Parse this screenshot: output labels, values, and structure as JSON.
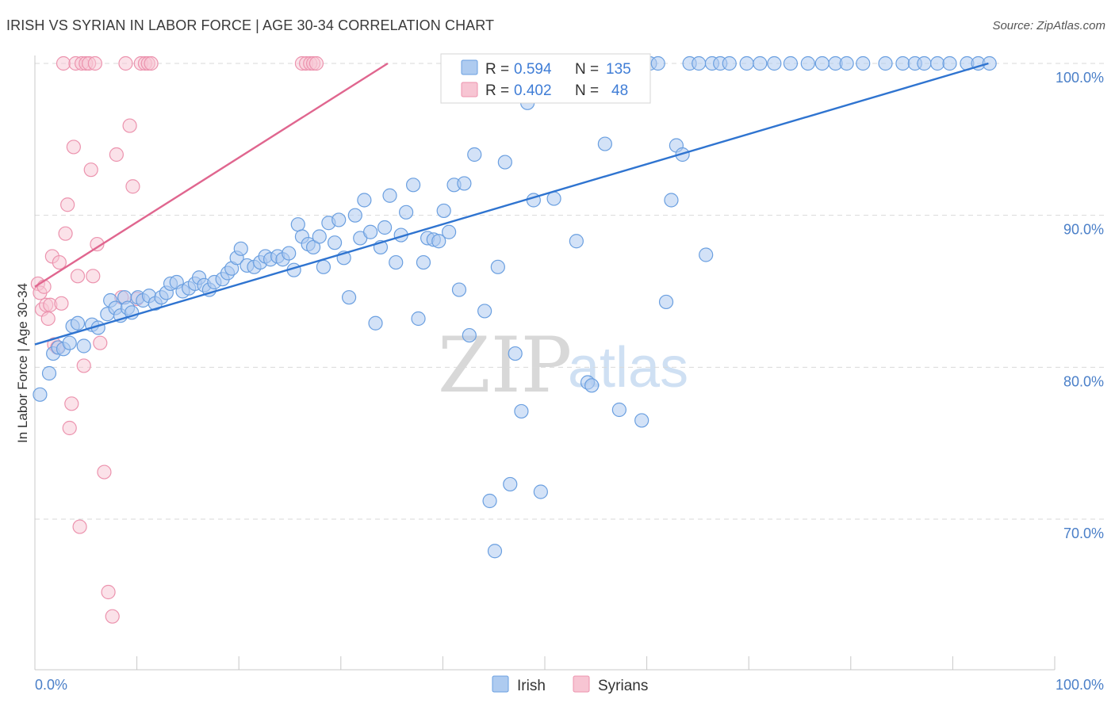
{
  "title": "IRISH VS SYRIAN IN LABOR FORCE | AGE 30-34 CORRELATION CHART",
  "source": "Source: ZipAtlas.com",
  "watermark": {
    "zip": "ZIP",
    "atlas": "atlas"
  },
  "colors": {
    "irish_fill": "#aecbf0",
    "irish_stroke": "#6a9fe0",
    "irish_line": "#2f74d0",
    "syrian_fill": "#f7c5d3",
    "syrian_stroke": "#ec93ae",
    "syrian_line": "#e0668f",
    "grid": "#d9d9d9",
    "tick_text": "#4a7fc8"
  },
  "legend": {
    "r_label": "R =",
    "n_label": "N =",
    "irish": {
      "r": "0.594",
      "n": "135"
    },
    "syrians": {
      "r": "0.402",
      "n": "48"
    }
  },
  "chart_data": {
    "type": "scatter",
    "title": "IRISH VS SYRIAN IN LABOR FORCE | AGE 30-34 CORRELATION CHART",
    "xlabel": "",
    "ylabel": "In Labor Force | Age 30-34",
    "xlim": [
      0,
      100
    ],
    "ylim": [
      60.5,
      101
    ],
    "x_tick_labels": [
      "0.0%",
      "100.0%"
    ],
    "y_ticks": [
      {
        "value": 100,
        "label": "100.0%"
      },
      {
        "value": 90,
        "label": "90.0%"
      },
      {
        "value": 80,
        "label": "80.0%"
      },
      {
        "value": 70,
        "label": "70.0%"
      }
    ],
    "series": [
      {
        "name": "Irish",
        "r": 0.594,
        "n": 135,
        "trend": {
          "x": [
            0,
            93.5
          ],
          "y": [
            81.5,
            100.0
          ]
        },
        "points": [
          [
            0.5,
            78.2
          ],
          [
            1.4,
            79.6
          ],
          [
            1.8,
            80.9
          ],
          [
            2.3,
            81.3
          ],
          [
            2.8,
            81.2
          ],
          [
            3.4,
            81.6
          ],
          [
            3.7,
            82.7
          ],
          [
            4.2,
            82.9
          ],
          [
            4.8,
            81.4
          ],
          [
            5.6,
            82.8
          ],
          [
            6.2,
            82.6
          ],
          [
            7.1,
            83.5
          ],
          [
            7.4,
            84.4
          ],
          [
            7.9,
            83.9
          ],
          [
            8.4,
            83.4
          ],
          [
            8.8,
            84.6
          ],
          [
            9.1,
            83.9
          ],
          [
            9.5,
            83.6
          ],
          [
            10.1,
            84.6
          ],
          [
            10.6,
            84.4
          ],
          [
            11.2,
            84.7
          ],
          [
            11.8,
            84.2
          ],
          [
            12.4,
            84.6
          ],
          [
            12.9,
            84.9
          ],
          [
            13.3,
            85.5
          ],
          [
            13.9,
            85.6
          ],
          [
            14.5,
            85.0
          ],
          [
            15.1,
            85.2
          ],
          [
            15.7,
            85.5
          ],
          [
            16.1,
            85.9
          ],
          [
            16.6,
            85.4
          ],
          [
            17.1,
            85.1
          ],
          [
            17.6,
            85.6
          ],
          [
            18.4,
            85.8
          ],
          [
            18.9,
            86.2
          ],
          [
            19.3,
            86.5
          ],
          [
            19.8,
            87.2
          ],
          [
            20.2,
            87.8
          ],
          [
            20.8,
            86.7
          ],
          [
            21.5,
            86.6
          ],
          [
            22.1,
            86.9
          ],
          [
            22.6,
            87.3
          ],
          [
            23.1,
            87.1
          ],
          [
            23.8,
            87.3
          ],
          [
            24.3,
            87.1
          ],
          [
            24.9,
            87.5
          ],
          [
            25.4,
            86.4
          ],
          [
            25.8,
            89.4
          ],
          [
            26.2,
            88.6
          ],
          [
            26.8,
            88.1
          ],
          [
            27.3,
            87.9
          ],
          [
            27.9,
            88.6
          ],
          [
            28.3,
            86.6
          ],
          [
            28.8,
            89.5
          ],
          [
            29.4,
            88.2
          ],
          [
            29.8,
            89.7
          ],
          [
            30.3,
            87.2
          ],
          [
            30.8,
            84.6
          ],
          [
            31.4,
            90.0
          ],
          [
            31.9,
            88.5
          ],
          [
            32.3,
            91.0
          ],
          [
            32.9,
            88.9
          ],
          [
            33.4,
            82.9
          ],
          [
            33.9,
            87.9
          ],
          [
            34.3,
            89.2
          ],
          [
            34.8,
            91.3
          ],
          [
            35.4,
            86.9
          ],
          [
            35.9,
            88.7
          ],
          [
            36.4,
            90.2
          ],
          [
            37.1,
            92.0
          ],
          [
            37.6,
            83.2
          ],
          [
            38.1,
            86.9
          ],
          [
            38.5,
            88.5
          ],
          [
            39.1,
            88.4
          ],
          [
            39.6,
            88.3
          ],
          [
            40.1,
            90.3
          ],
          [
            40.6,
            88.9
          ],
          [
            41.1,
            92.0
          ],
          [
            41.6,
            85.1
          ],
          [
            42.1,
            92.1
          ],
          [
            42.6,
            82.1
          ],
          [
            43.1,
            94.0
          ],
          [
            44.1,
            83.7
          ],
          [
            44.6,
            71.2
          ],
          [
            45.1,
            67.9
          ],
          [
            45.4,
            86.6
          ],
          [
            46.1,
            93.5
          ],
          [
            46.6,
            72.3
          ],
          [
            47.1,
            80.9
          ],
          [
            47.7,
            77.1
          ],
          [
            48.3,
            97.4
          ],
          [
            48.9,
            91.0
          ],
          [
            49.6,
            71.8
          ],
          [
            50.1,
            100.0
          ],
          [
            50.9,
            91.1
          ],
          [
            51.6,
            100.0
          ],
          [
            52.3,
            100.0
          ],
          [
            53.1,
            88.3
          ],
          [
            53.8,
            100.0
          ],
          [
            54.2,
            79.0
          ],
          [
            54.6,
            78.8
          ],
          [
            55.2,
            100.0
          ],
          [
            55.9,
            94.7
          ],
          [
            56.6,
            100.0
          ],
          [
            57.3,
            77.2
          ],
          [
            58.1,
            100.0
          ],
          [
            58.8,
            100.0
          ],
          [
            59.5,
            76.5
          ],
          [
            60.3,
            100.0
          ],
          [
            61.1,
            100.0
          ],
          [
            61.9,
            84.3
          ],
          [
            62.4,
            91.0
          ],
          [
            62.9,
            94.6
          ],
          [
            63.5,
            94.0
          ],
          [
            64.2,
            100.0
          ],
          [
            65.1,
            100.0
          ],
          [
            65.8,
            87.4
          ],
          [
            66.4,
            100.0
          ],
          [
            67.2,
            100.0
          ],
          [
            68.1,
            100.0
          ],
          [
            69.8,
            100.0
          ],
          [
            71.1,
            100.0
          ],
          [
            72.5,
            100.0
          ],
          [
            74.1,
            100.0
          ],
          [
            75.8,
            100.0
          ],
          [
            77.2,
            100.0
          ],
          [
            78.5,
            100.0
          ],
          [
            79.6,
            100.0
          ],
          [
            81.2,
            100.0
          ],
          [
            83.4,
            100.0
          ],
          [
            85.1,
            100.0
          ],
          [
            86.3,
            100.0
          ],
          [
            87.2,
            100.0
          ],
          [
            88.5,
            100.0
          ],
          [
            89.7,
            100.0
          ],
          [
            91.4,
            100.0
          ],
          [
            92.5,
            100.0
          ],
          [
            93.6,
            100.0
          ]
        ]
      },
      {
        "name": "Syrians",
        "r": 0.402,
        "n": 48,
        "trend": {
          "x": [
            0,
            34.6
          ],
          "y": [
            85.3,
            100.0
          ]
        },
        "points": [
          [
            0.3,
            85.5
          ],
          [
            0.5,
            84.9
          ],
          [
            0.7,
            83.8
          ],
          [
            0.9,
            85.3
          ],
          [
            1.1,
            84.1
          ],
          [
            1.3,
            83.2
          ],
          [
            1.5,
            84.1
          ],
          [
            1.7,
            87.3
          ],
          [
            1.9,
            81.5
          ],
          [
            2.2,
            81.3
          ],
          [
            2.4,
            86.9
          ],
          [
            2.6,
            84.2
          ],
          [
            2.8,
            100.0
          ],
          [
            3.0,
            88.8
          ],
          [
            3.2,
            90.7
          ],
          [
            3.4,
            76.0
          ],
          [
            3.6,
            77.6
          ],
          [
            3.8,
            94.5
          ],
          [
            4.0,
            100.0
          ],
          [
            4.2,
            86.0
          ],
          [
            4.4,
            69.5
          ],
          [
            4.6,
            100.0
          ],
          [
            4.8,
            80.1
          ],
          [
            5.0,
            100.0
          ],
          [
            5.3,
            100.0
          ],
          [
            5.5,
            93.0
          ],
          [
            5.7,
            86.0
          ],
          [
            5.9,
            100.0
          ],
          [
            6.1,
            88.1
          ],
          [
            6.4,
            81.6
          ],
          [
            6.8,
            73.1
          ],
          [
            7.2,
            65.2
          ],
          [
            7.6,
            63.6
          ],
          [
            8.0,
            94.0
          ],
          [
            8.5,
            84.6
          ],
          [
            8.9,
            100.0
          ],
          [
            9.3,
            95.9
          ],
          [
            9.6,
            91.9
          ],
          [
            10.0,
            84.5
          ],
          [
            10.4,
            100.0
          ],
          [
            10.8,
            100.0
          ],
          [
            11.1,
            100.0
          ],
          [
            11.4,
            100.0
          ],
          [
            26.2,
            100.0
          ],
          [
            26.6,
            100.0
          ],
          [
            27.0,
            100.0
          ],
          [
            27.3,
            100.0
          ],
          [
            27.6,
            100.0
          ]
        ]
      }
    ]
  },
  "bottom_legend": {
    "irish": "Irish",
    "syrians": "Syrians"
  }
}
